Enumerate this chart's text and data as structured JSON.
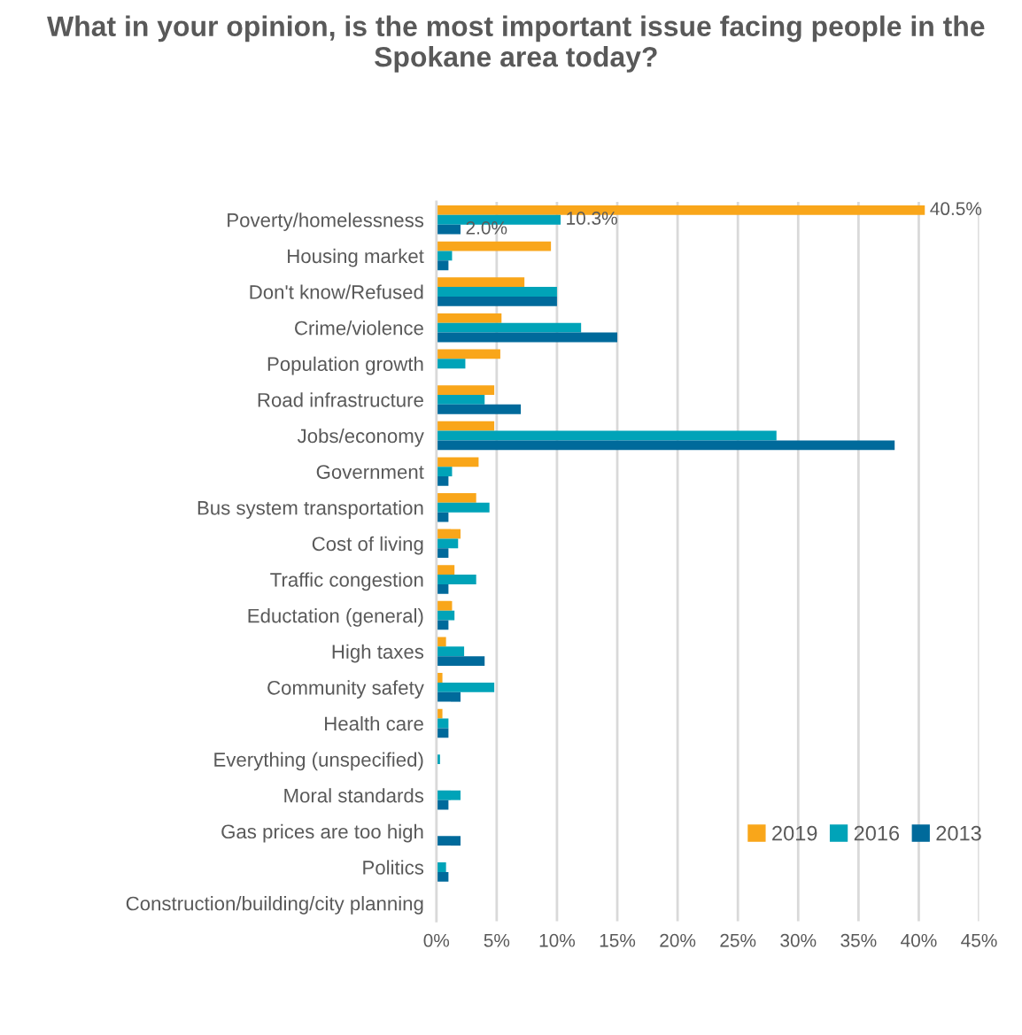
{
  "chart_data": {
    "type": "bar",
    "orientation": "horizontal",
    "title": "What in your opinion, is the most important issue facing people in the Spokane area today?",
    "categories": [
      "Poverty/homelessness",
      "Housing market",
      "Don't know/Refused",
      "Crime/violence",
      "Population growth",
      "Road infrastructure",
      "Jobs/economy",
      "Government",
      "Bus system transportation",
      "Cost of living",
      "Traffic congestion",
      "Eductation (general)",
      "High taxes",
      "Community safety",
      "Health care",
      "Everything (unspecified)",
      "Moral standards",
      "Gas prices are too high",
      "Politics",
      "Construction/building/city planning"
    ],
    "series": [
      {
        "name": "2019",
        "color": "#f9a61a",
        "values": [
          40.5,
          9.5,
          7.3,
          5.4,
          5.3,
          4.8,
          4.8,
          3.5,
          3.3,
          2.0,
          1.5,
          1.3,
          0.8,
          0.5,
          0.5,
          null,
          null,
          null,
          null,
          null
        ],
        "value_labels": [
          "40.5%",
          null,
          null,
          null,
          null,
          null,
          null,
          null,
          null,
          null,
          null,
          null,
          null,
          null,
          null,
          null,
          null,
          null,
          null,
          null
        ]
      },
      {
        "name": "2016",
        "color": "#00a3b8",
        "values": [
          10.3,
          1.3,
          10.0,
          12.0,
          2.4,
          4.0,
          28.2,
          1.3,
          4.4,
          1.8,
          3.3,
          1.5,
          2.3,
          4.8,
          1.0,
          0.3,
          2.0,
          null,
          0.8,
          null
        ],
        "value_labels": [
          "10.3%",
          null,
          null,
          null,
          null,
          null,
          null,
          null,
          null,
          null,
          null,
          null,
          null,
          null,
          null,
          null,
          null,
          null,
          null,
          null
        ]
      },
      {
        "name": "2013",
        "color": "#006a9b",
        "values": [
          2.0,
          1.0,
          10.0,
          15.0,
          null,
          7.0,
          38.0,
          1.0,
          1.0,
          1.0,
          1.0,
          1.0,
          4.0,
          2.0,
          1.0,
          null,
          1.0,
          2.0,
          1.0,
          null
        ],
        "value_labels": [
          "2.0%",
          null,
          null,
          null,
          null,
          null,
          null,
          null,
          null,
          null,
          null,
          null,
          null,
          null,
          null,
          null,
          null,
          null,
          null,
          null
        ]
      }
    ],
    "xlim": [
      0,
      45
    ],
    "xticks": [
      {
        "value": 0,
        "label": "0%"
      },
      {
        "value": 5,
        "label": "5%"
      },
      {
        "value": 10,
        "label": "10%"
      },
      {
        "value": 15,
        "label": "15%"
      },
      {
        "value": 20,
        "label": "20%"
      },
      {
        "value": 25,
        "label": "25%"
      },
      {
        "value": 30,
        "label": "30%"
      },
      {
        "value": 35,
        "label": "35%"
      },
      {
        "value": 40,
        "label": "40%"
      },
      {
        "value": 45,
        "label": "45%"
      }
    ],
    "grid": "x",
    "legend": "bottom right"
  }
}
